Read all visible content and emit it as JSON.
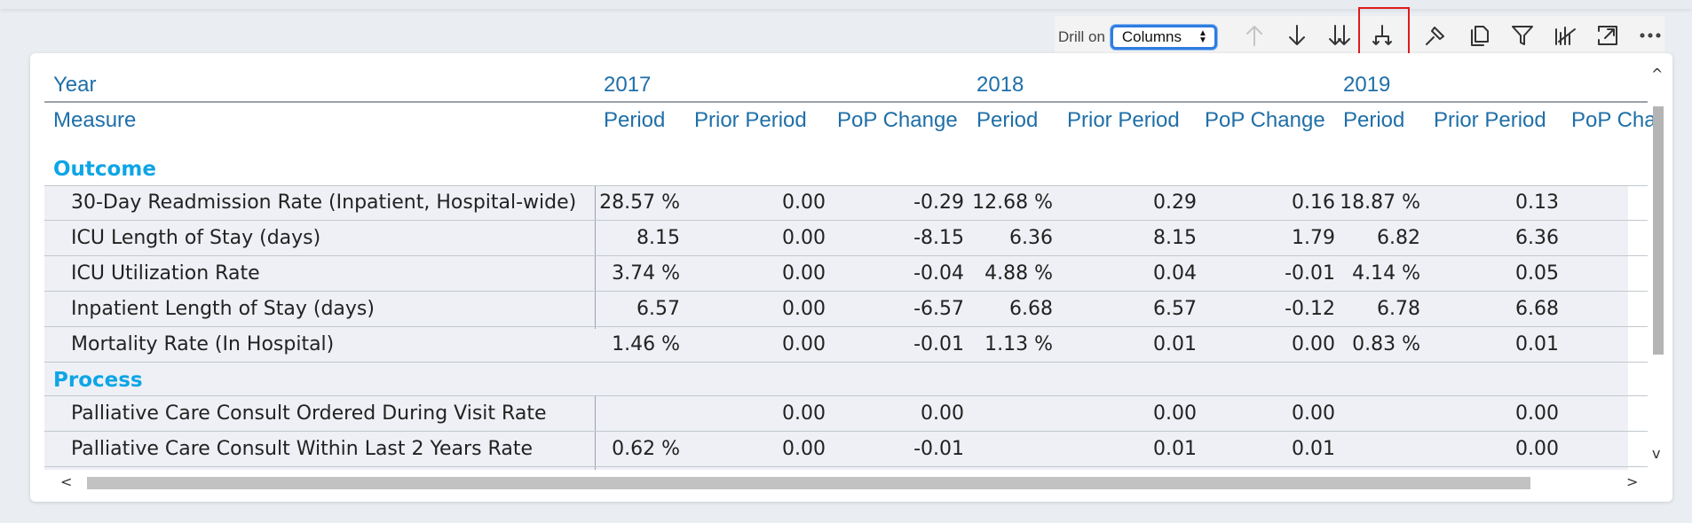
{
  "toolbar": {
    "drill_label": "Drill on",
    "drill_value": "Columns",
    "buttons": [
      "drill-up-icon",
      "drill-down-icon",
      "expand-next-level-icon",
      "expand-all-down-icon",
      "pin-icon",
      "copy-icon",
      "filter-icon",
      "focus-chart-icon",
      "expand-icon",
      "more-options-icon"
    ]
  },
  "table": {
    "header_year_label": "Year",
    "header_measure_label": "Measure",
    "years": [
      "2017",
      "2018",
      "2019"
    ],
    "measures": [
      "Period",
      "Prior Period",
      "PoP Change",
      "Period",
      "Prior Period",
      "PoP Change",
      "Period",
      "Prior Period",
      "PoP Cha"
    ],
    "groups": [
      {
        "name": "Outcome",
        "rows": [
          {
            "label": "30-Day Readmission Rate (Inpatient, Hospital-wide)",
            "values": [
              "28.57 %",
              "0.00",
              "-0.29",
              "12.68 %",
              "0.29",
              "0.16",
              "18.87 %",
              "0.13"
            ]
          },
          {
            "label": "ICU Length of Stay (days)",
            "values": [
              "8.15",
              "0.00",
              "-8.15",
              "6.36",
              "8.15",
              "1.79",
              "6.82",
              "6.36"
            ]
          },
          {
            "label": "ICU Utilization Rate",
            "values": [
              "3.74 %",
              "0.00",
              "-0.04",
              "4.88 %",
              "0.04",
              "-0.01",
              "4.14 %",
              "0.05"
            ]
          },
          {
            "label": "Inpatient Length of Stay (days)",
            "values": [
              "6.57",
              "0.00",
              "-6.57",
              "6.68",
              "6.57",
              "-0.12",
              "6.78",
              "6.68"
            ]
          },
          {
            "label": "Mortality Rate (In Hospital)",
            "values": [
              "1.46 %",
              "0.00",
              "-0.01",
              "1.13 %",
              "0.01",
              "0.00",
              "0.83 %",
              "0.01"
            ]
          }
        ]
      },
      {
        "name": "Process",
        "rows": [
          {
            "label": "Palliative Care Consult Ordered During Visit Rate",
            "values": [
              "",
              "0.00",
              "0.00",
              "",
              "0.00",
              "0.00",
              "",
              "0.00"
            ]
          },
          {
            "label": "Palliative Care Consult Within Last 2 Years Rate",
            "values": [
              "0.62 %",
              "0.00",
              "-0.01",
              "",
              "0.01",
              "0.01",
              "",
              "0.00"
            ]
          }
        ]
      }
    ]
  },
  "scroll": {
    "left": "<",
    "right": ">",
    "up": "^",
    "down": "v"
  }
}
